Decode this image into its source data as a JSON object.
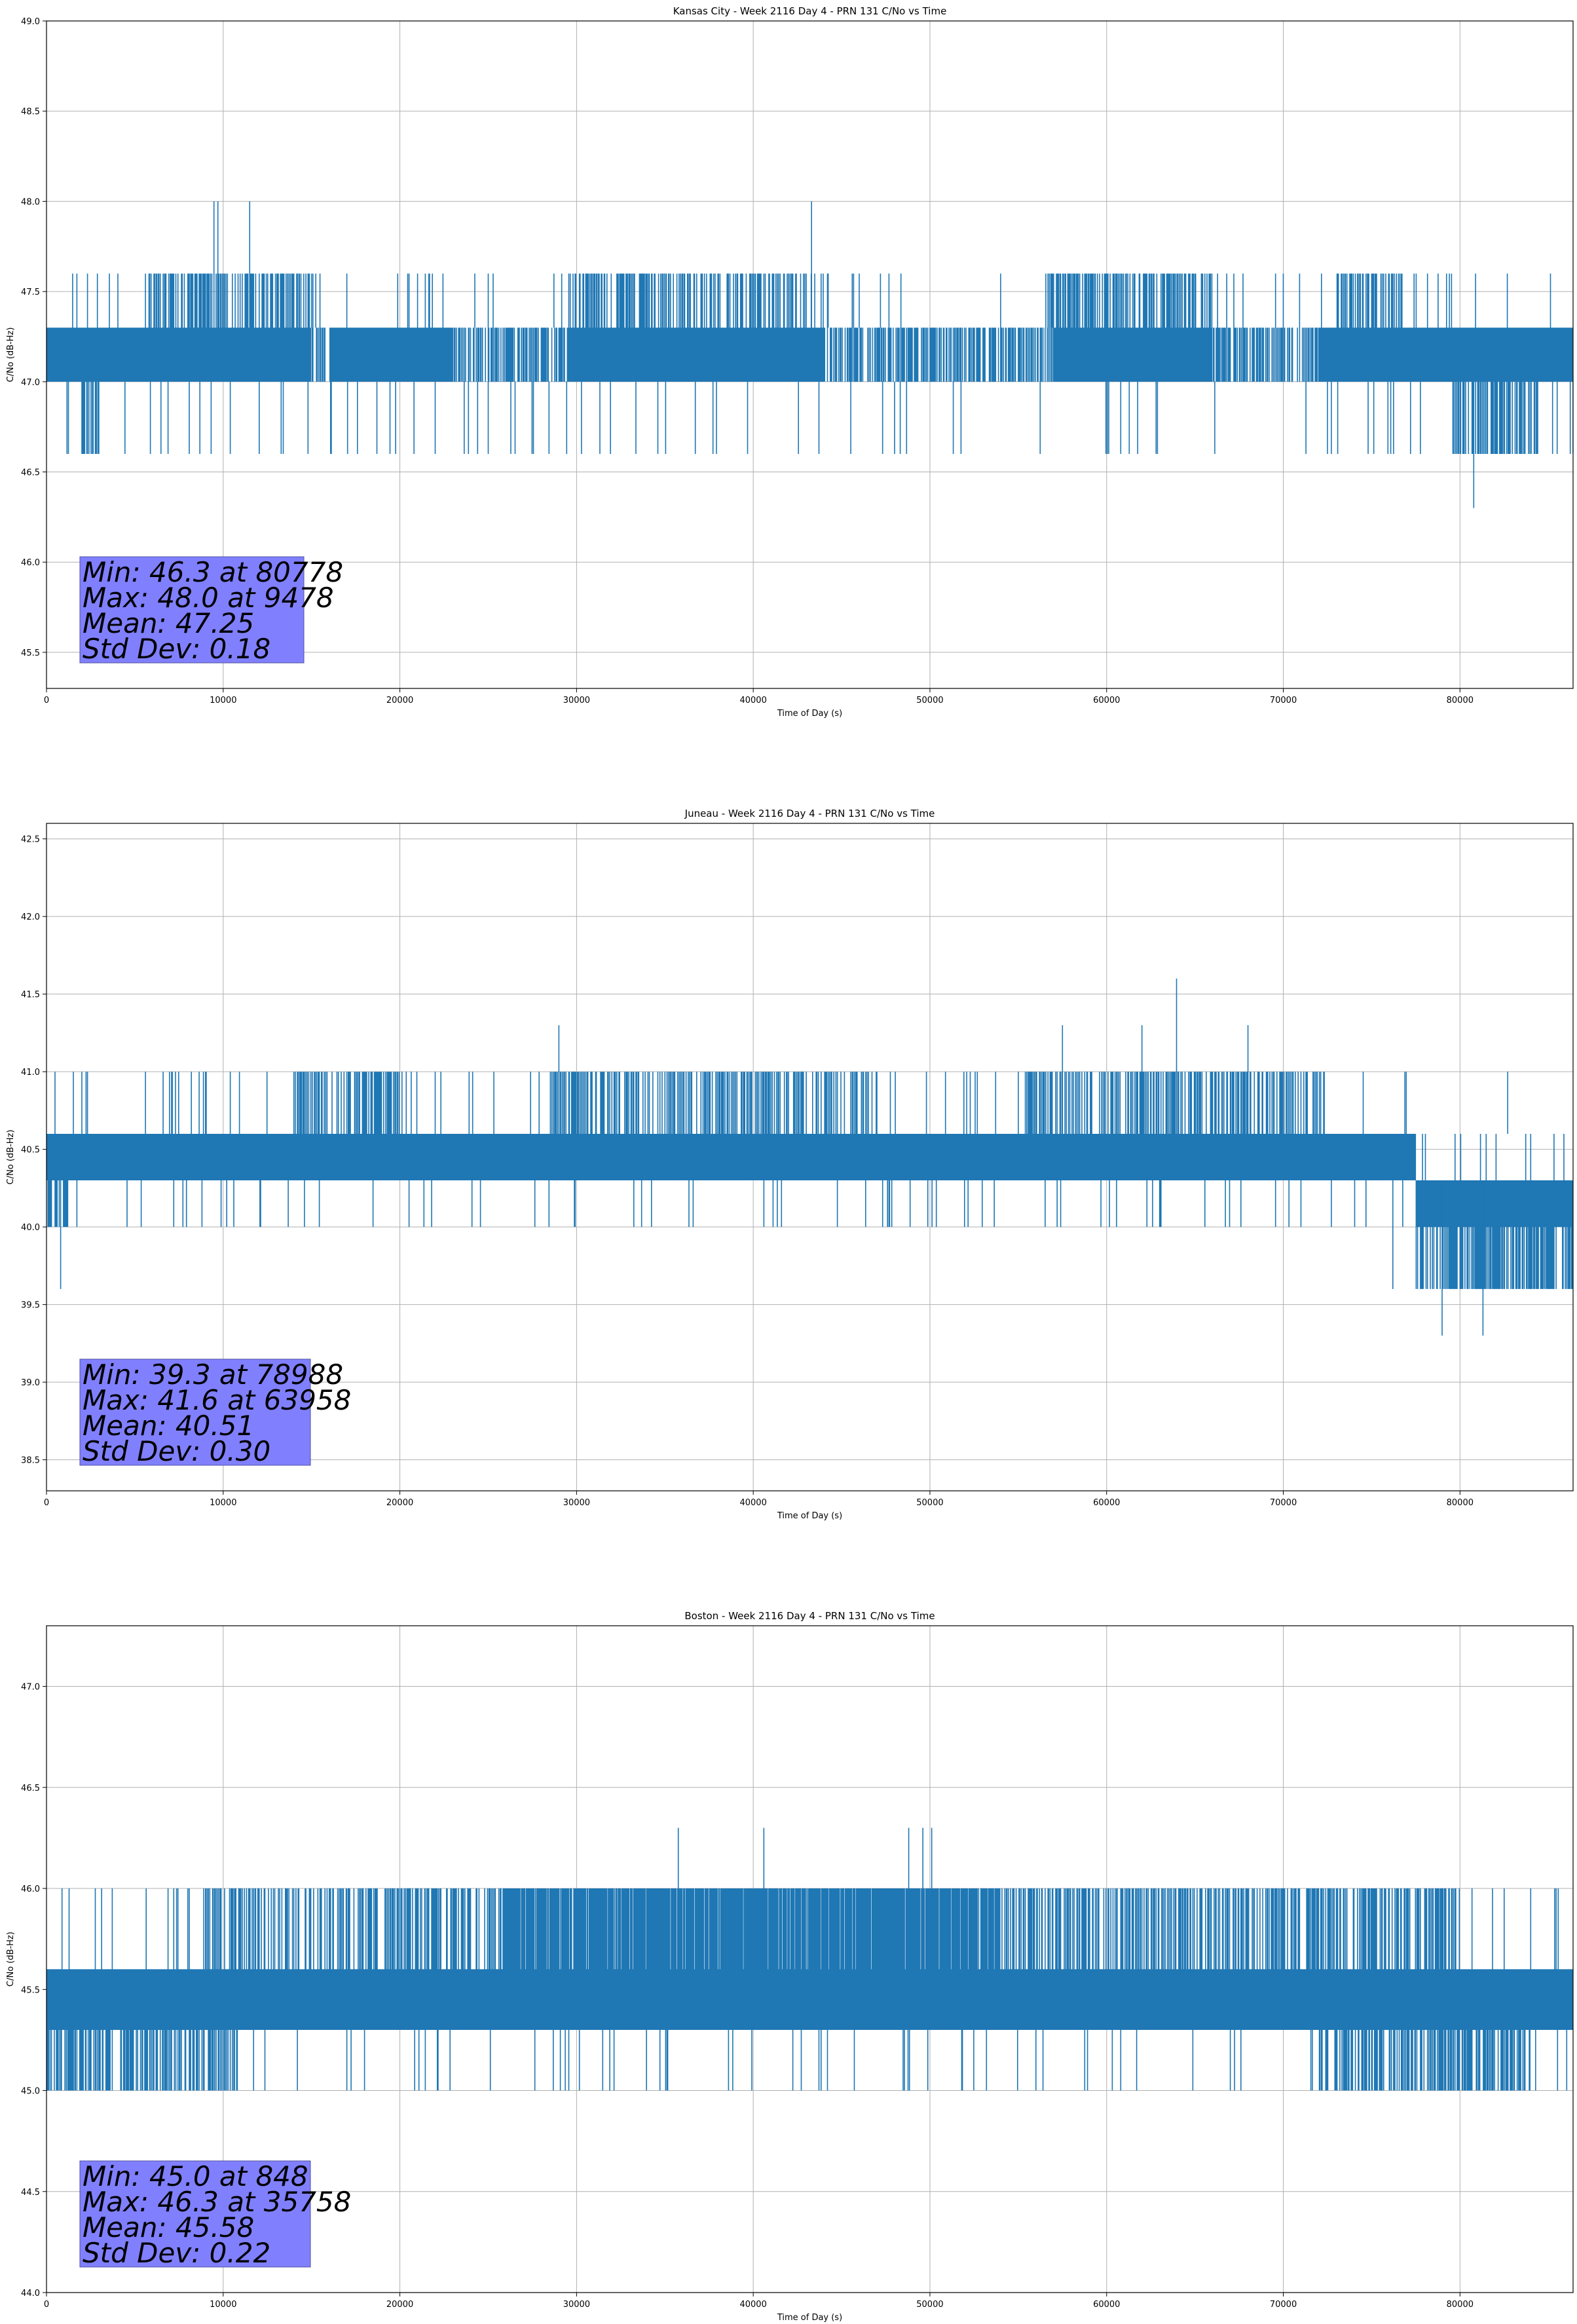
{
  "chart_data": [
    {
      "type": "line",
      "title": "Kansas City - Week 2116 Day 4 - PRN 131 C/No vs Time",
      "xlabel": "Time of Day (s)",
      "ylabel": "C/No (dB-Hz)",
      "xlim": [
        0,
        86400
      ],
      "ylim": [
        45.3,
        49.0
      ],
      "xticks": [
        0,
        10000,
        20000,
        30000,
        40000,
        50000,
        60000,
        70000,
        80000
      ],
      "yticks": [
        45.5,
        46.0,
        46.5,
        47.0,
        47.5,
        48.0,
        48.5,
        49.0
      ],
      "ytick_labels": [
        "45.5",
        "46.0",
        "46.5",
        "47.0",
        "47.5",
        "48.0",
        "48.5",
        "49.0"
      ],
      "grid": true,
      "series_color": "#1f77b4",
      "levels": [
        46.6,
        47.0,
        47.3,
        47.6,
        48.0
      ],
      "base_range": [
        47.0,
        47.3
      ],
      "high_segments": [
        [
          5600,
          15500
        ],
        [
          29500,
          43000
        ],
        [
          56500,
          66000
        ],
        [
          73000,
          77000
        ]
      ],
      "low_segments": [
        [
          1800,
          3000
        ],
        [
          79500,
          84500
        ]
      ],
      "dropouts": [
        [
          15000,
          16000
        ],
        [
          23000,
          29500
        ],
        [
          44000,
          57000
        ],
        [
          66000,
          72000
        ]
      ],
      "spikes": [
        [
          9478,
          48.0
        ],
        [
          9700,
          48.0
        ],
        [
          11500,
          48.0
        ],
        [
          43300,
          48.0
        ],
        [
          80778,
          46.3
        ],
        [
          18700,
          46.6
        ],
        [
          20800,
          46.6
        ],
        [
          72500,
          46.6
        ],
        [
          74800,
          46.6
        ],
        [
          77200,
          46.6
        ],
        [
          85500,
          46.6
        ]
      ],
      "stats": {
        "lines": [
          "Min: 46.3 at 80778",
          "Max: 48.0 at 9478",
          "Mean: 47.25",
          "Std Dev: 0.18"
        ],
        "min": 46.3,
        "min_at": 80778,
        "max": 48.0,
        "max_at": 9478,
        "mean": 47.25,
        "std": 0.18
      },
      "stats_box_color": "#8080ff"
    },
    {
      "type": "line",
      "title": "Juneau - Week 2116 Day 4 - PRN 131 C/No vs Time",
      "xlabel": "Time of Day (s)",
      "ylabel": "C/No (dB-Hz)",
      "xlim": [
        0,
        86400
      ],
      "ylim": [
        38.3,
        42.6
      ],
      "xticks": [
        0,
        10000,
        20000,
        30000,
        40000,
        50000,
        60000,
        70000,
        80000
      ],
      "yticks": [
        38.5,
        39.0,
        39.5,
        40.0,
        40.5,
        41.0,
        41.5,
        42.0,
        42.5
      ],
      "ytick_labels": [
        "38.5",
        "39.0",
        "39.5",
        "40.0",
        "40.5",
        "41.0",
        "41.5",
        "42.0",
        "42.5"
      ],
      "grid": true,
      "series_color": "#1f77b4",
      "levels": [
        39.6,
        40.0,
        40.3,
        40.6,
        41.0,
        41.3
      ],
      "base_range": [
        40.3,
        40.6
      ],
      "high_segments": [
        [
          14000,
          20000
        ],
        [
          28500,
          47000
        ],
        [
          55000,
          72500
        ]
      ],
      "low_segments": [
        [
          0,
          1200
        ],
        [
          79000,
          85500
        ]
      ],
      "low_range_segments": [
        [
          77500,
          86400
        ]
      ],
      "dropouts": [],
      "spikes": [
        [
          63958,
          41.6
        ],
        [
          78988,
          39.3
        ],
        [
          81300,
          39.3
        ],
        [
          29000,
          41.3
        ],
        [
          57500,
          41.3
        ],
        [
          62000,
          41.3
        ],
        [
          68000,
          41.3
        ],
        [
          800,
          39.6
        ],
        [
          76200,
          39.6
        ],
        [
          5600,
          41.0
        ],
        [
          7300,
          41.0
        ],
        [
          82700,
          41.0
        ]
      ],
      "stats": {
        "lines": [
          "Min: 39.3 at 78988",
          "Max: 41.6 at 63958",
          "Mean: 40.51",
          "Std Dev: 0.30"
        ],
        "min": 39.3,
        "min_at": 78988,
        "max": 41.6,
        "max_at": 63958,
        "mean": 40.51,
        "std": 0.3
      },
      "stats_box_color": "#8080ff"
    },
    {
      "type": "line",
      "title": "Boston - Week 2116 Day 4 - PRN 131 C/No vs Time",
      "xlabel": "Time of Day (s)",
      "ylabel": "C/No (dB-Hz)",
      "xlim": [
        0,
        86400
      ],
      "ylim": [
        44.0,
        47.3
      ],
      "xticks": [
        0,
        10000,
        20000,
        30000,
        40000,
        50000,
        60000,
        70000,
        80000
      ],
      "yticks": [
        44.0,
        44.5,
        45.0,
        45.5,
        46.0,
        46.5,
        47.0
      ],
      "ytick_labels": [
        "44.0",
        "44.5",
        "45.0",
        "45.5",
        "46.0",
        "46.5",
        "47.0"
      ],
      "grid": true,
      "series_color": "#1f77b4",
      "levels": [
        45.0,
        45.3,
        45.6,
        46.0
      ],
      "base_range": [
        45.3,
        45.6
      ],
      "high_segments": [
        [
          9000,
          80000
        ]
      ],
      "dense_high_segments": [
        [
          26000,
          54000
        ]
      ],
      "low_segments": [
        [
          0,
          11000
        ],
        [
          72000,
          84000
        ]
      ],
      "dropouts": [],
      "spikes": [
        [
          35758,
          46.3
        ],
        [
          40600,
          46.3
        ],
        [
          48800,
          46.3
        ],
        [
          49600,
          46.3
        ],
        [
          50100,
          46.3
        ],
        [
          848,
          45.0
        ],
        [
          61700,
          45.0
        ],
        [
          67000,
          45.0
        ],
        [
          8900,
          46.0
        ],
        [
          82500,
          46.0
        ]
      ],
      "stats": {
        "lines": [
          "Min: 45.0 at 848",
          "Max: 46.3 at 35758",
          "Mean: 45.58",
          "Std Dev: 0.22"
        ],
        "min": 45.0,
        "min_at": 848,
        "max": 46.3,
        "max_at": 35758,
        "mean": 45.58,
        "std": 0.22
      },
      "stats_box_color": "#8080ff"
    }
  ]
}
